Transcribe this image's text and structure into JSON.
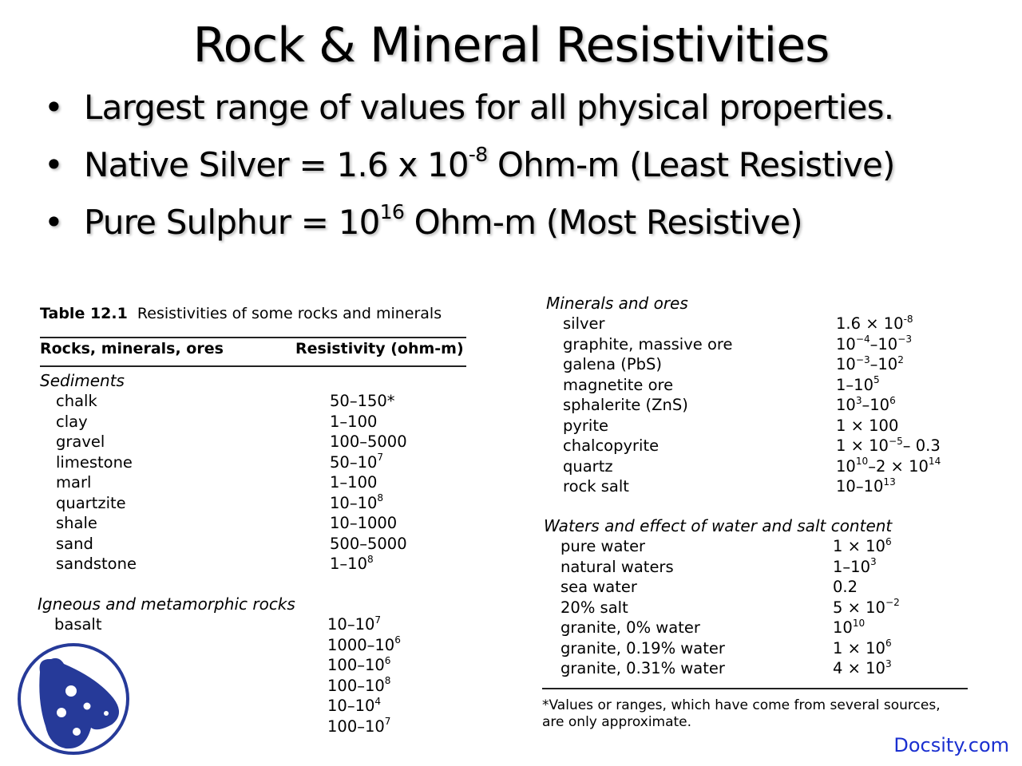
{
  "title": "Rock & Mineral Resistivities",
  "bullets": [
    {
      "parts": [
        {
          "t": "Largest range of values for all physical properties."
        }
      ]
    },
    {
      "parts": [
        {
          "t": "Native Silver = 1.6 x 10"
        },
        {
          "t": "-8",
          "s": true
        },
        {
          "t": " Ohm-m (Least Resistive)"
        }
      ]
    },
    {
      "parts": [
        {
          "t": "Pure Sulphur = 10"
        },
        {
          "t": "16",
          "s": true
        },
        {
          "t": " Ohm-m (Most Resistive)"
        }
      ]
    }
  ],
  "table": {
    "caption_label": "Table 12.1",
    "caption_text": "Resistivities of some rocks and minerals",
    "col_headers": [
      "Rocks, minerals, ores",
      "Resistivity (ohm-m)"
    ],
    "footnote": "*Values or ranges, which have come from several sources, are only approximate.",
    "sections": [
      {
        "name": "Sediments",
        "rows": [
          {
            "name": "chalk",
            "value": [
              {
                "t": "50–150*"
              }
            ]
          },
          {
            "name": "clay",
            "value": [
              {
                "t": "1–100"
              }
            ]
          },
          {
            "name": "gravel",
            "value": [
              {
                "t": "100–5000"
              }
            ]
          },
          {
            "name": "limestone",
            "value": [
              {
                "t": "50–10"
              },
              {
                "t": "7",
                "s": true
              }
            ]
          },
          {
            "name": "marl",
            "value": [
              {
                "t": "1–100"
              }
            ]
          },
          {
            "name": "quartzite",
            "value": [
              {
                "t": "10–10"
              },
              {
                "t": "8",
                "s": true
              }
            ]
          },
          {
            "name": "shale",
            "value": [
              {
                "t": "10–1000"
              }
            ]
          },
          {
            "name": "sand",
            "value": [
              {
                "t": "500–5000"
              }
            ]
          },
          {
            "name": "sandstone",
            "value": [
              {
                "t": "1–10"
              },
              {
                "t": "8",
                "s": true
              }
            ]
          }
        ]
      },
      {
        "name": "Igneous and metamorphic rocks",
        "rows": [
          {
            "name": "basalt",
            "value": [
              {
                "t": "10–10"
              },
              {
                "t": "7",
                "s": true
              }
            ]
          },
          {
            "name": "",
            "value": [
              {
                "t": "1000–10"
              },
              {
                "t": "6",
                "s": true
              }
            ]
          },
          {
            "name": "",
            "value": [
              {
                "t": "100–10"
              },
              {
                "t": "6",
                "s": true
              }
            ]
          },
          {
            "name": "",
            "value": [
              {
                "t": "100–10"
              },
              {
                "t": "8",
                "s": true
              }
            ]
          },
          {
            "name": "",
            "value": [
              {
                "t": "10–10"
              },
              {
                "t": "4",
                "s": true
              }
            ]
          },
          {
            "name": "",
            "value": [
              {
                "t": "100–10"
              },
              {
                "t": "7",
                "s": true
              }
            ]
          }
        ]
      },
      {
        "name": "Minerals and ores",
        "rows": [
          {
            "name": "silver",
            "value": [
              {
                "t": "1.6 × 10"
              },
              {
                "t": "-8",
                "s": true
              }
            ]
          },
          {
            "name": "graphite, massive ore",
            "value": [
              {
                "t": "10"
              },
              {
                "t": "−4",
                "s": true
              },
              {
                "t": "–10"
              },
              {
                "t": "−3",
                "s": true
              }
            ]
          },
          {
            "name": "galena (PbS)",
            "value": [
              {
                "t": "10"
              },
              {
                "t": "−3",
                "s": true
              },
              {
                "t": "–10"
              },
              {
                "t": "2",
                "s": true
              }
            ]
          },
          {
            "name": "magnetite ore",
            "value": [
              {
                "t": "1–10"
              },
              {
                "t": "5",
                "s": true
              }
            ]
          },
          {
            "name": "sphalerite (ZnS)",
            "value": [
              {
                "t": "10"
              },
              {
                "t": "3",
                "s": true
              },
              {
                "t": "–10"
              },
              {
                "t": "6",
                "s": true
              }
            ]
          },
          {
            "name": "pyrite",
            "value": [
              {
                "t": "1 × 100"
              }
            ]
          },
          {
            "name": "chalcopyrite",
            "value": [
              {
                "t": "1 × 10"
              },
              {
                "t": "−5",
                "s": true
              },
              {
                "t": "– 0.3"
              }
            ]
          },
          {
            "name": "quartz",
            "value": [
              {
                "t": "10"
              },
              {
                "t": "10",
                "s": true
              },
              {
                "t": "–2 × 10"
              },
              {
                "t": "14",
                "s": true
              }
            ]
          },
          {
            "name": "rock salt",
            "value": [
              {
                "t": "10–10"
              },
              {
                "t": "13",
                "s": true
              }
            ]
          }
        ]
      },
      {
        "name": "Waters and effect of water and salt content",
        "rows": [
          {
            "name": "pure water",
            "value": [
              {
                "t": "1 × 10"
              },
              {
                "t": "6",
                "s": true
              }
            ]
          },
          {
            "name": "natural waters",
            "value": [
              {
                "t": "1–10"
              },
              {
                "t": "3",
                "s": true
              }
            ]
          },
          {
            "name": "sea water",
            "value": [
              {
                "t": "0.2"
              }
            ]
          },
          {
            "name": "20% salt",
            "value": [
              {
                "t": "5 × 10"
              },
              {
                "t": "−2",
                "s": true
              }
            ]
          },
          {
            "name": "granite, 0% water",
            "value": [
              {
                "t": "10"
              },
              {
                "t": "10",
                "s": true
              }
            ]
          },
          {
            "name": "granite, 0.19% water",
            "value": [
              {
                "t": "1 × 10"
              },
              {
                "t": "6",
                "s": true
              }
            ]
          },
          {
            "name": "granite, 0.31% water",
            "value": [
              {
                "t": "4 × 10"
              },
              {
                "t": "3",
                "s": true
              }
            ]
          }
        ]
      }
    ]
  },
  "watermark": "Docsity.com",
  "colors": {
    "logo": "#263a99",
    "link": "#1a2fd0"
  }
}
